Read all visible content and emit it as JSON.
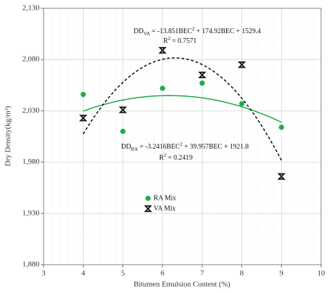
{
  "chart_data": {
    "type": "scatter",
    "x_label": "Bitumen Emulsion Content (%)",
    "y_label": "Dry Density(kg/m³)",
    "xlim": [
      3,
      10
    ],
    "xticks": [
      3,
      4,
      5,
      6,
      7,
      8,
      9,
      10
    ],
    "ylim": [
      1880,
      2130
    ],
    "yticks": [
      {
        "value": 1880,
        "label": "1,880"
      },
      {
        "value": 1930,
        "label": "1,930"
      },
      {
        "value": 1980,
        "label": "1,980"
      },
      {
        "value": 2030,
        "label": "2,030"
      },
      {
        "value": 2080,
        "label": "2,080"
      },
      {
        "value": 2130,
        "label": "2,130"
      }
    ],
    "grid": true,
    "legend": "center",
    "series": [
      {
        "name": "RA Mix",
        "color": "#21ad4b",
        "marker": "circle",
        "x": [
          4,
          5,
          6,
          7,
          8,
          9
        ],
        "values": [
          2046,
          2010,
          2052,
          2057,
          2037,
          2014
        ],
        "trendline": {
          "coefficients": [
            -3.2416,
            39.957,
            1921.8
          ],
          "dash": false,
          "equation": [
            {
              "text": "DD"
            },
            {
              "text": "RA",
              "style": "sub"
            },
            {
              "text": " = -3.2416BEC"
            },
            {
              "text": "2",
              "style": "sup"
            },
            {
              "text": " + 39.957BEC + 1921.8"
            }
          ],
          "r_squared": [
            {
              "text": "R"
            },
            {
              "text": "2",
              "style": "sup"
            },
            {
              "text": " = 0.2419"
            }
          ]
        }
      },
      {
        "name": "VA Mix",
        "color": "#111111",
        "marker": "hourglass",
        "x": [
          4,
          5,
          6,
          7,
          8,
          9
        ],
        "values": [
          2023,
          2031,
          2089,
          2065,
          2075,
          1966
        ],
        "trendline": {
          "coefficients": [
            -13.851,
            174.92,
            1529.4
          ],
          "dash": true,
          "equation": [
            {
              "text": "DD"
            },
            {
              "text": "VA",
              "style": "sub"
            },
            {
              "text": " = -13.851BEC"
            },
            {
              "text": "2",
              "style": "sup"
            },
            {
              "text": " + 174.92BEC + 1529.4"
            }
          ],
          "r_squared": [
            {
              "text": "R"
            },
            {
              "text": "2",
              "style": "sup"
            },
            {
              "text": " = 0.7571"
            }
          ]
        }
      }
    ]
  }
}
